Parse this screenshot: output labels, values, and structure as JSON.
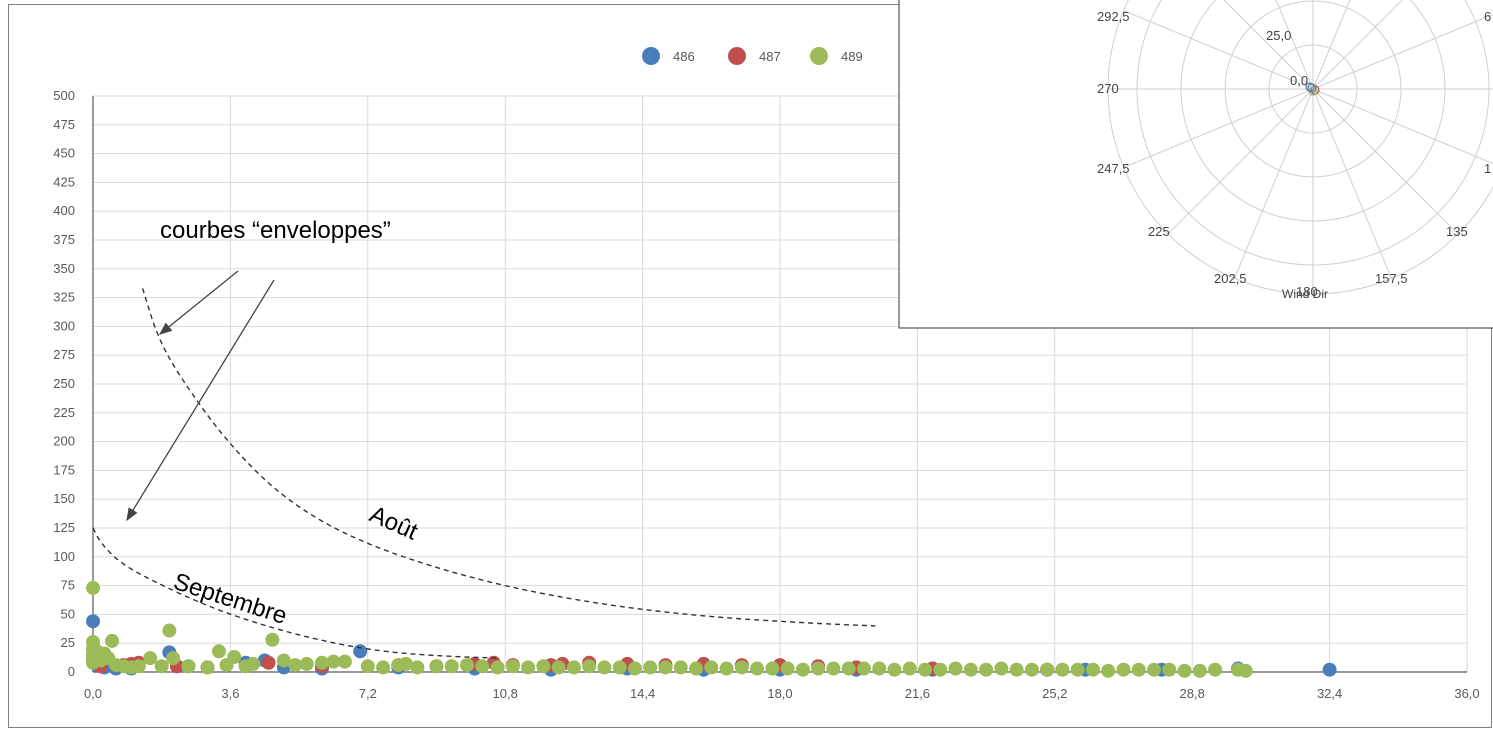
{
  "chart_data": [
    {
      "type": "scatter",
      "x_ticks": [
        "0,0",
        "3,6",
        "7,2",
        "10,8",
        "14,4",
        "18,0",
        "21,6",
        "25,2",
        "28,8",
        "32,4",
        "36,0"
      ],
      "y_ticks": [
        "0",
        "25",
        "50",
        "75",
        "100",
        "125",
        "150",
        "175",
        "200",
        "225",
        "250",
        "275",
        "300",
        "325",
        "350",
        "375",
        "400",
        "425",
        "450",
        "475",
        "500"
      ],
      "xlim": [
        0,
        36
      ],
      "ylim": [
        0,
        500
      ],
      "grid": true,
      "legend_position": "top",
      "series": [
        {
          "name": "486",
          "color": "#4a7ebb",
          "points": [
            [
              0,
              44
            ],
            [
              0,
              10
            ],
            [
              0.1,
              6
            ],
            [
              0.3,
              4
            ],
            [
              0.6,
              3
            ],
            [
              1,
              3
            ],
            [
              2,
              17
            ],
            [
              2.5,
              5
            ],
            [
              4,
              8
            ],
            [
              4.5,
              10
            ],
            [
              5,
              4
            ],
            [
              6,
              3
            ],
            [
              7,
              18
            ],
            [
              8,
              4
            ],
            [
              10,
              3
            ],
            [
              12,
              2
            ],
            [
              14,
              3
            ],
            [
              16,
              2
            ],
            [
              18,
              2
            ],
            [
              20,
              2
            ],
            [
              22,
              2
            ],
            [
              25,
              2
            ],
            [
              26,
              2
            ],
            [
              28,
              2
            ],
            [
              30,
              3
            ],
            [
              32.4,
              2
            ]
          ]
        },
        {
          "name": "487",
          "color": "#c0504d",
          "points": [
            [
              0.2,
              5
            ],
            [
              0.8,
              6
            ],
            [
              1,
              7
            ],
            [
              1.2,
              8
            ],
            [
              2.2,
              5
            ],
            [
              3,
              4
            ],
            [
              4.6,
              8
            ],
            [
              6,
              5
            ],
            [
              8,
              6
            ],
            [
              9,
              5
            ],
            [
              10,
              7
            ],
            [
              10.5,
              8
            ],
            [
              11,
              6
            ],
            [
              12,
              6
            ],
            [
              12.3,
              7
            ],
            [
              13,
              8
            ],
            [
              14,
              7
            ],
            [
              15,
              6
            ],
            [
              16,
              7
            ],
            [
              17,
              6
            ],
            [
              18,
              6
            ],
            [
              19,
              5
            ],
            [
              20,
              4
            ],
            [
              22,
              3
            ],
            [
              25,
              2
            ]
          ]
        },
        {
          "name": "489",
          "color": "#9bbb59",
          "points": [
            [
              0,
              73
            ],
            [
              0,
              26
            ],
            [
              0,
              20
            ],
            [
              0,
              15
            ],
            [
              0,
              12
            ],
            [
              0,
              8
            ],
            [
              0.1,
              18
            ],
            [
              0.2,
              10
            ],
            [
              0.3,
              16
            ],
            [
              0.4,
              12
            ],
            [
              0.5,
              27
            ],
            [
              0.6,
              6
            ],
            [
              0.8,
              5
            ],
            [
              1,
              4
            ],
            [
              1.2,
              5
            ],
            [
              1.5,
              12
            ],
            [
              1.8,
              5
            ],
            [
              2,
              36
            ],
            [
              2.1,
              12
            ],
            [
              2.5,
              5
            ],
            [
              3,
              4
            ],
            [
              3.3,
              18
            ],
            [
              3.5,
              6
            ],
            [
              3.7,
              13
            ],
            [
              4,
              5
            ],
            [
              4.2,
              7
            ],
            [
              4.7,
              28
            ],
            [
              5,
              10
            ],
            [
              5.3,
              6
            ],
            [
              5.6,
              7
            ],
            [
              6,
              8
            ],
            [
              6.3,
              9
            ],
            [
              6.6,
              9
            ],
            [
              7.2,
              5
            ],
            [
              7.6,
              4
            ],
            [
              8,
              6
            ],
            [
              8.2,
              7
            ],
            [
              8.5,
              4
            ],
            [
              9,
              5
            ],
            [
              9.4,
              5
            ],
            [
              9.8,
              6
            ],
            [
              10.2,
              5
            ],
            [
              10.6,
              4
            ],
            [
              11,
              5
            ],
            [
              11.4,
              4
            ],
            [
              11.8,
              5
            ],
            [
              12.2,
              4
            ],
            [
              12.6,
              4
            ],
            [
              13,
              5
            ],
            [
              13.4,
              4
            ],
            [
              13.8,
              4
            ],
            [
              14.2,
              3
            ],
            [
              14.6,
              4
            ],
            [
              15,
              4
            ],
            [
              15.4,
              4
            ],
            [
              15.8,
              3
            ],
            [
              16.2,
              4
            ],
            [
              16.6,
              3
            ],
            [
              17,
              4
            ],
            [
              17.4,
              3
            ],
            [
              17.8,
              3
            ],
            [
              18.2,
              3
            ],
            [
              18.6,
              2
            ],
            [
              19,
              3
            ],
            [
              19.4,
              3
            ],
            [
              19.8,
              3
            ],
            [
              20.2,
              3
            ],
            [
              20.6,
              3
            ],
            [
              21,
              2
            ],
            [
              21.4,
              3
            ],
            [
              21.8,
              2
            ],
            [
              22.2,
              2
            ],
            [
              22.6,
              3
            ],
            [
              23,
              2
            ],
            [
              23.4,
              2
            ],
            [
              23.8,
              3
            ],
            [
              24.2,
              2
            ],
            [
              24.6,
              2
            ],
            [
              25,
              2
            ],
            [
              25.4,
              2
            ],
            [
              25.8,
              2
            ],
            [
              26.2,
              2
            ],
            [
              26.6,
              1
            ],
            [
              27,
              2
            ],
            [
              27.4,
              2
            ],
            [
              27.8,
              2
            ],
            [
              28.2,
              2
            ],
            [
              28.6,
              1
            ],
            [
              29,
              1
            ],
            [
              29.4,
              2
            ],
            [
              30,
              2
            ],
            [
              30.2,
              1
            ]
          ]
        }
      ],
      "annotations": {
        "heading": "courbes “enveloppes”",
        "curve_aout": "Août",
        "curve_septembre": "Septembre"
      },
      "envelope_curves": [
        {
          "name": "Août",
          "points": [
            [
              1.3,
              333
            ],
            [
              1.7,
              290
            ],
            [
              2.3,
              255
            ],
            [
              3.5,
              200
            ],
            [
              5,
              150
            ],
            [
              7,
              112
            ],
            [
              10,
              80
            ],
            [
              13,
              60
            ],
            [
              16,
              48
            ],
            [
              19,
              42
            ],
            [
              20.5,
              40
            ]
          ]
        },
        {
          "name": "Septembre",
          "points": [
            [
              0,
              125
            ],
            [
              0.2,
              112
            ],
            [
              0.7,
              95
            ],
            [
              1.5,
              80
            ],
            [
              3,
              57
            ],
            [
              4.5,
              40
            ],
            [
              6,
              27
            ],
            [
              7.5,
              18
            ],
            [
              9,
              14
            ],
            [
              10.6,
              12
            ]
          ]
        }
      ]
    },
    {
      "type": "polar",
      "direction_labels": [
        "292,5",
        "270",
        "247,5",
        "225",
        "202,5",
        "180",
        "157,5",
        "135",
        "1",
        "6"
      ],
      "radial_labels": [
        "25,0",
        "0,0"
      ],
      "axis_label": "Wind Dir"
    }
  ]
}
